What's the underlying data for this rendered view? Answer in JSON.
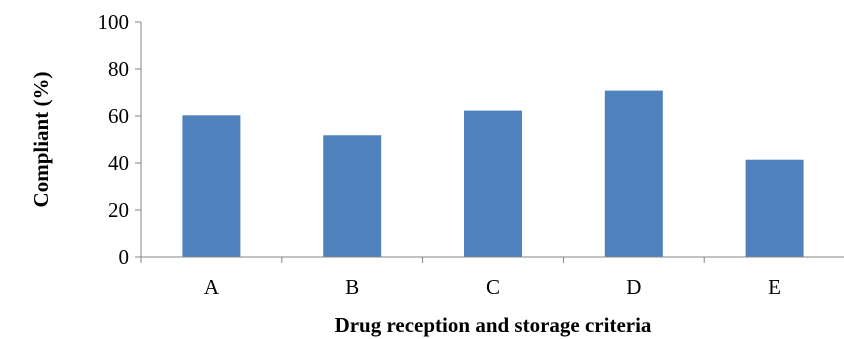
{
  "chart_data": {
    "type": "bar",
    "categories": [
      "A",
      "B",
      "C",
      "D",
      "E"
    ],
    "values": [
      60.3,
      51.8,
      62.3,
      70.8,
      41.4
    ],
    "title": "",
    "xlabel": "Drug reception and storage criteria",
    "ylabel": "Compliant (%)",
    "ylim": [
      0,
      100
    ],
    "yticks": [
      0,
      20,
      40,
      60,
      80,
      100
    ],
    "grid": false,
    "legend": "none",
    "colors": {
      "bar": "#4f81bd",
      "axis": "#868686",
      "text": "#000000"
    }
  }
}
